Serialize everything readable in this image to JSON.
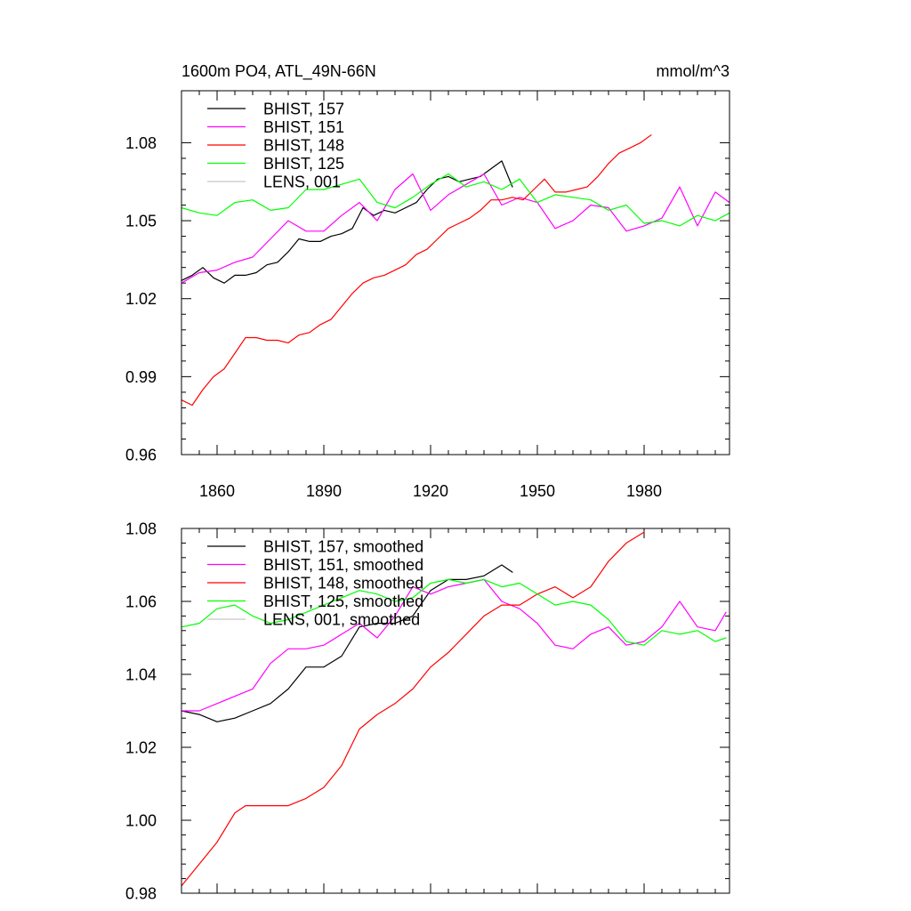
{
  "chart_data": [
    {
      "type": "line",
      "title": "1600m PO4, ATL_49N-66N",
      "units": "mmol/m^3",
      "xlim": [
        1850,
        2004
      ],
      "ylim": [
        0.96,
        1.1
      ],
      "x_ticks": [
        1860,
        1890,
        1920,
        1950,
        1980
      ],
      "x_tick_labels": [
        "1860",
        "1890",
        "1920",
        "1950",
        "1980"
      ],
      "y_ticks": [
        0.96,
        0.99,
        1.02,
        1.05,
        1.08
      ],
      "y_tick_labels": [
        "0.96",
        "0.99",
        "1.02",
        "1.05",
        "1.08"
      ],
      "legend_position": "top-left",
      "grid": false,
      "series": [
        {
          "name": "BHIST, 157",
          "color": "#000000",
          "x": [
            1850,
            1853,
            1856,
            1859,
            1862,
            1865,
            1868,
            1871,
            1874,
            1877,
            1880,
            1883,
            1886,
            1889,
            1892,
            1895,
            1898,
            1901,
            1904,
            1907,
            1910,
            1913,
            1916,
            1919,
            1922,
            1925,
            1928,
            1931,
            1934,
            1937,
            1940,
            1943
          ],
          "y": [
            1.027,
            1.029,
            1.032,
            1.028,
            1.026,
            1.029,
            1.029,
            1.03,
            1.033,
            1.034,
            1.038,
            1.043,
            1.042,
            1.042,
            1.044,
            1.045,
            1.047,
            1.055,
            1.052,
            1.054,
            1.053,
            1.055,
            1.057,
            1.062,
            1.066,
            1.067,
            1.065,
            1.066,
            1.067,
            1.07,
            1.073,
            1.063
          ]
        },
        {
          "name": "BHIST, 151",
          "color": "#ff00ff",
          "x": [
            1850,
            1855,
            1860,
            1865,
            1870,
            1875,
            1880,
            1885,
            1890,
            1895,
            1900,
            1905,
            1910,
            1915,
            1920,
            1925,
            1930,
            1935,
            1940,
            1945,
            1950,
            1955,
            1960,
            1965,
            1970,
            1975,
            1980,
            1985,
            1990,
            1995,
            2000,
            2004
          ],
          "y": [
            1.026,
            1.03,
            1.031,
            1.034,
            1.036,
            1.043,
            1.05,
            1.046,
            1.046,
            1.052,
            1.057,
            1.05,
            1.062,
            1.068,
            1.054,
            1.06,
            1.064,
            1.068,
            1.056,
            1.059,
            1.057,
            1.047,
            1.05,
            1.056,
            1.055,
            1.046,
            1.048,
            1.051,
            1.063,
            1.048,
            1.061,
            1.057
          ]
        },
        {
          "name": "BHIST, 148",
          "color": "#ff0000",
          "x": [
            1850,
            1853,
            1856,
            1859,
            1862,
            1865,
            1868,
            1871,
            1874,
            1877,
            1880,
            1883,
            1886,
            1889,
            1892,
            1895,
            1898,
            1901,
            1904,
            1907,
            1910,
            1913,
            1916,
            1919,
            1922,
            1925,
            1928,
            1931,
            1934,
            1937,
            1940,
            1943,
            1946,
            1949,
            1952,
            1955,
            1958,
            1961,
            1964,
            1967,
            1970,
            1973,
            1976,
            1979,
            1982
          ],
          "y": [
            0.981,
            0.979,
            0.985,
            0.99,
            0.993,
            0.999,
            1.005,
            1.005,
            1.004,
            1.004,
            1.003,
            1.006,
            1.007,
            1.01,
            1.012,
            1.017,
            1.022,
            1.026,
            1.028,
            1.029,
            1.031,
            1.033,
            1.037,
            1.039,
            1.043,
            1.047,
            1.049,
            1.051,
            1.054,
            1.058,
            1.058,
            1.059,
            1.058,
            1.062,
            1.066,
            1.061,
            1.061,
            1.062,
            1.063,
            1.067,
            1.072,
            1.076,
            1.078,
            1.08,
            1.083
          ]
        },
        {
          "name": "BHIST, 125",
          "color": "#00ff00",
          "x": [
            1850,
            1855,
            1860,
            1865,
            1870,
            1875,
            1880,
            1885,
            1890,
            1895,
            1900,
            1905,
            1910,
            1915,
            1920,
            1925,
            1930,
            1935,
            1940,
            1945,
            1950,
            1955,
            1960,
            1965,
            1970,
            1975,
            1980,
            1985,
            1990,
            1995,
            2000,
            2004
          ],
          "y": [
            1.055,
            1.053,
            1.052,
            1.057,
            1.058,
            1.054,
            1.055,
            1.062,
            1.062,
            1.064,
            1.066,
            1.057,
            1.055,
            1.059,
            1.064,
            1.068,
            1.063,
            1.065,
            1.062,
            1.066,
            1.057,
            1.06,
            1.059,
            1.058,
            1.054,
            1.056,
            1.049,
            1.05,
            1.048,
            1.052,
            1.05,
            1.053
          ]
        },
        {
          "name": "LENS, 001",
          "color": "#c8c8c8",
          "x": [],
          "y": []
        }
      ]
    },
    {
      "type": "line",
      "title": "",
      "xlim": [
        1850,
        2004
      ],
      "ylim": [
        0.98,
        1.08
      ],
      "x_ticks": [
        1860,
        1890,
        1920,
        1950,
        1980
      ],
      "x_tick_labels": [],
      "y_ticks": [
        0.98,
        1.0,
        1.02,
        1.04,
        1.06,
        1.08
      ],
      "y_tick_labels": [
        "0.98",
        "1.00",
        "1.02",
        "1.04",
        "1.06",
        "1.08"
      ],
      "legend_position": "top-left",
      "grid": false,
      "series": [
        {
          "name": "BHIST, 157, smoothed",
          "color": "#000000",
          "x": [
            1850,
            1855,
            1860,
            1865,
            1870,
            1875,
            1880,
            1885,
            1890,
            1895,
            1900,
            1905,
            1910,
            1915,
            1920,
            1925,
            1930,
            1935,
            1940,
            1943
          ],
          "y": [
            1.03,
            1.029,
            1.027,
            1.028,
            1.03,
            1.032,
            1.036,
            1.042,
            1.042,
            1.045,
            1.053,
            1.054,
            1.054,
            1.056,
            1.063,
            1.066,
            1.066,
            1.067,
            1.07,
            1.068
          ]
        },
        {
          "name": "BHIST, 151, smoothed",
          "color": "#ff00ff",
          "x": [
            1850,
            1855,
            1860,
            1865,
            1870,
            1875,
            1880,
            1885,
            1890,
            1895,
            1900,
            1905,
            1910,
            1915,
            1920,
            1925,
            1930,
            1935,
            1940,
            1945,
            1950,
            1955,
            1960,
            1965,
            1970,
            1975,
            1980,
            1985,
            1990,
            1995,
            2000,
            2003
          ],
          "y": [
            1.03,
            1.03,
            1.032,
            1.034,
            1.036,
            1.043,
            1.047,
            1.047,
            1.048,
            1.051,
            1.054,
            1.05,
            1.056,
            1.064,
            1.062,
            1.064,
            1.065,
            1.066,
            1.06,
            1.058,
            1.054,
            1.048,
            1.047,
            1.051,
            1.053,
            1.048,
            1.049,
            1.053,
            1.06,
            1.053,
            1.052,
            1.057
          ]
        },
        {
          "name": "BHIST, 148, smoothed",
          "color": "#ff0000",
          "x": [
            1850,
            1855,
            1860,
            1865,
            1868,
            1872,
            1876,
            1880,
            1885,
            1890,
            1895,
            1900,
            1905,
            1910,
            1915,
            1920,
            1925,
            1930,
            1935,
            1940,
            1945,
            1950,
            1955,
            1960,
            1965,
            1970,
            1975,
            1980
          ],
          "y": [
            0.982,
            0.988,
            0.994,
            1.002,
            1.004,
            1.004,
            1.004,
            1.004,
            1.006,
            1.009,
            1.015,
            1.025,
            1.029,
            1.032,
            1.036,
            1.042,
            1.046,
            1.051,
            1.056,
            1.059,
            1.059,
            1.062,
            1.064,
            1.061,
            1.064,
            1.071,
            1.076,
            1.079
          ]
        },
        {
          "name": "BHIST, 125, smoothed",
          "color": "#00ff00",
          "x": [
            1850,
            1855,
            1860,
            1865,
            1870,
            1875,
            1880,
            1885,
            1890,
            1895,
            1900,
            1905,
            1910,
            1915,
            1920,
            1925,
            1930,
            1935,
            1940,
            1945,
            1950,
            1955,
            1960,
            1965,
            1970,
            1975,
            1980,
            1985,
            1990,
            1995,
            2000,
            2003
          ],
          "y": [
            1.053,
            1.054,
            1.058,
            1.059,
            1.056,
            1.054,
            1.055,
            1.057,
            1.059,
            1.061,
            1.063,
            1.062,
            1.06,
            1.061,
            1.065,
            1.066,
            1.065,
            1.066,
            1.064,
            1.065,
            1.062,
            1.059,
            1.06,
            1.059,
            1.055,
            1.049,
            1.048,
            1.052,
            1.051,
            1.052,
            1.049,
            1.05
          ]
        },
        {
          "name": "LENS, 001, smoothed",
          "color": "#c8c8c8",
          "x": [],
          "y": []
        }
      ]
    }
  ]
}
